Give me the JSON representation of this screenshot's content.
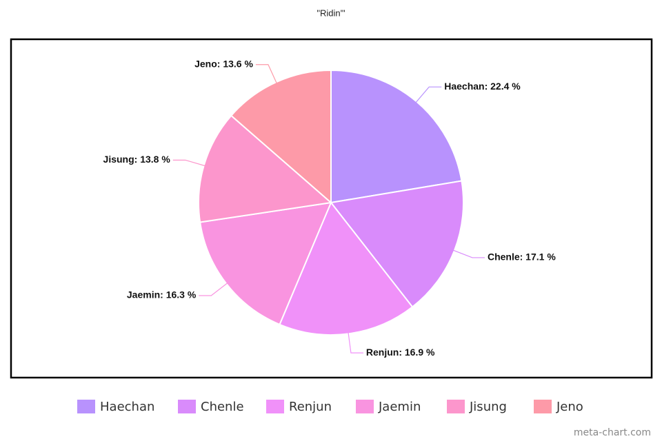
{
  "chart_data": {
    "type": "pie",
    "title": "\"Ridin'\"",
    "categories": [
      "Haechan",
      "Chenle",
      "Renjun",
      "Jaemin",
      "Jisung",
      "Jeno"
    ],
    "values": [
      22.4,
      17.1,
      16.9,
      16.3,
      13.8,
      13.6
    ],
    "value_labels": [
      "Haechan: 22.4 %",
      "Chenle: 17.1 %",
      "Renjun: 16.9 %",
      "Jaemin: 16.3 %",
      "Jisung: 13.8 %",
      "Jeno: 13.6 %"
    ],
    "colors": [
      "#b892fd",
      "#d98bfb",
      "#f091f9",
      "#f994e0",
      "#fc96cc",
      "#fd9aa8"
    ],
    "legend": "bottom",
    "watermark": "meta-chart.com"
  }
}
